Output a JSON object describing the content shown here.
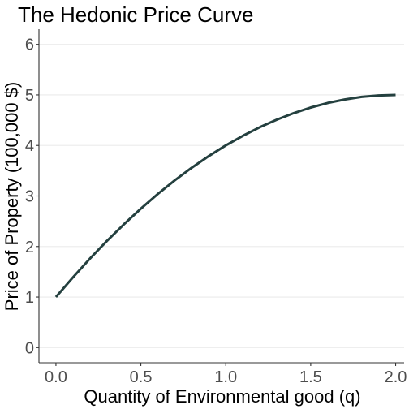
{
  "chart_data": {
    "type": "line",
    "title": "The Hedonic Price Curve",
    "xlabel": "Quantity of Environmental good (q)",
    "ylabel": "Price of Property (100,000 $)",
    "xlim": [
      -0.1,
      2.05
    ],
    "ylim": [
      -0.3,
      6.3
    ],
    "x_ticks": [
      0.0,
      0.5,
      1.0,
      1.5,
      2.0
    ],
    "x_tick_labels": [
      "0.0",
      "0.5",
      "1.0",
      "1.5",
      "2.0"
    ],
    "y_ticks": [
      0,
      1,
      2,
      3,
      4,
      5,
      6
    ],
    "y_tick_labels": [
      "0",
      "1",
      "2",
      "3",
      "4",
      "5",
      "6"
    ],
    "grid": "horizontal major",
    "legend": "none",
    "series": [
      {
        "color": "#24403f",
        "x": [
          0.0,
          0.1,
          0.2,
          0.3,
          0.4,
          0.5,
          0.6,
          0.7,
          0.8,
          0.9,
          1.0,
          1.1,
          1.2,
          1.3,
          1.4,
          1.5,
          1.6,
          1.7,
          1.8,
          1.9,
          2.0
        ],
        "y": [
          1.0,
          1.39,
          1.76,
          2.11,
          2.44,
          2.75,
          3.04,
          3.31,
          3.56,
          3.79,
          4.0,
          4.19,
          4.36,
          4.51,
          4.64,
          4.75,
          4.84,
          4.91,
          4.96,
          4.99,
          5.0
        ]
      }
    ]
  }
}
